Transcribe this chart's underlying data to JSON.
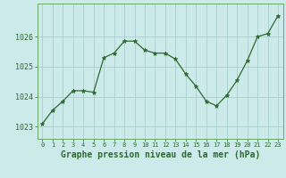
{
  "x": [
    0,
    1,
    2,
    3,
    4,
    5,
    6,
    7,
    8,
    9,
    10,
    11,
    12,
    13,
    14,
    15,
    16,
    17,
    18,
    19,
    20,
    21,
    22,
    23
  ],
  "y": [
    1023.1,
    1023.55,
    1023.85,
    1024.2,
    1024.2,
    1024.15,
    1025.3,
    1025.45,
    1025.85,
    1025.85,
    1025.55,
    1025.45,
    1025.45,
    1025.25,
    1024.75,
    1024.35,
    1023.85,
    1023.7,
    1024.05,
    1024.55,
    1025.2,
    1026.0,
    1026.1,
    1026.7
  ],
  "line_color": "#2d6a2d",
  "marker": "*",
  "marker_size": 3.5,
  "bg_color": "#cceaea",
  "grid_color": "#aacfcf",
  "title": "Graphe pression niveau de la mer (hPa)",
  "title_fontsize": 7,
  "ytick_labels": [
    "1023",
    "1024",
    "1025",
    "1026"
  ],
  "yticks": [
    1023,
    1024,
    1025,
    1026
  ],
  "ylim": [
    1022.6,
    1027.1
  ],
  "xlim": [
    -0.5,
    23.5
  ],
  "xtick_fontsize": 5,
  "ytick_fontsize": 6
}
